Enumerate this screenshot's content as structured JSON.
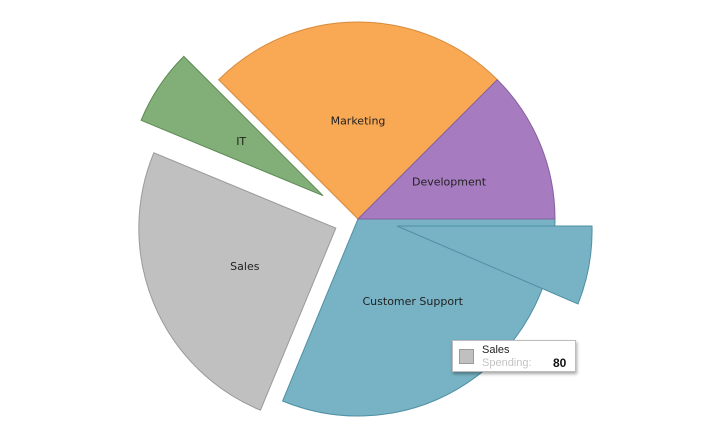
{
  "chart_data": {
    "type": "pie",
    "categories": [
      "Customer Support",
      "Sales",
      "IT",
      "Marketing",
      "Development"
    ],
    "values": [
      100,
      80,
      20,
      80,
      40
    ],
    "label_visible": [
      true,
      true,
      true,
      true,
      true
    ]
  },
  "tooltip": {
    "category": "Sales",
    "series_label": "Spending:",
    "value": "80"
  },
  "colors": {
    "Customer Support": "#77b3c4",
    "Customer Support-second": "#77b3c4",
    "Sales": "#c0c0c0",
    "IT": "#82ae77",
    "Marketing": "#f9a954",
    "Development": "#a77bbf"
  }
}
